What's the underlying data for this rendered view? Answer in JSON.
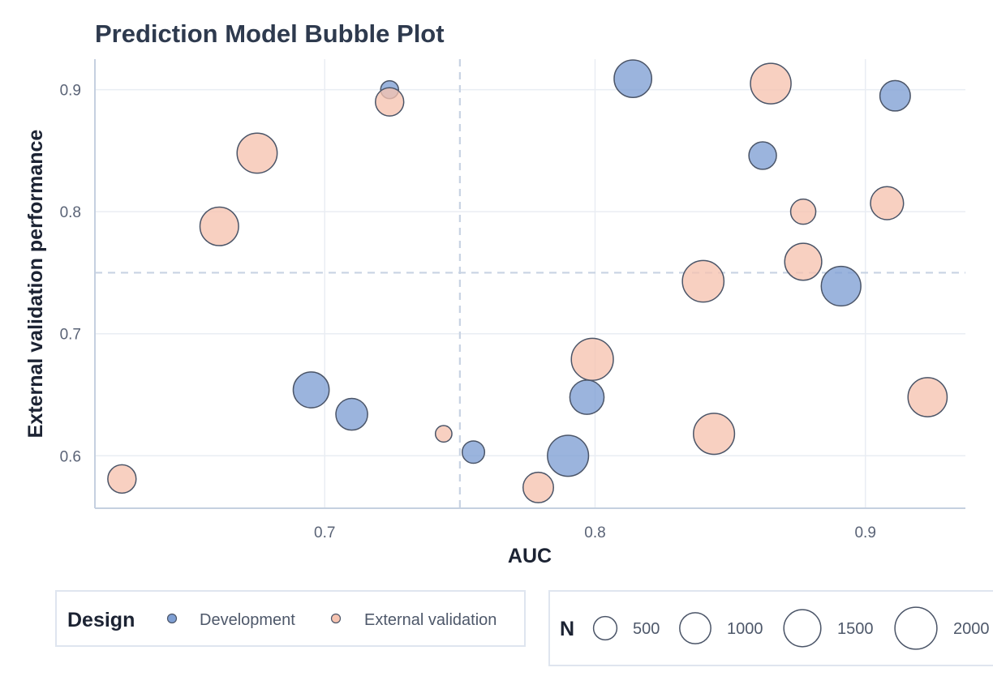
{
  "chart_data": {
    "type": "scatter",
    "title": "Prediction Model Bubble Plot",
    "xlabel": "AUC",
    "ylabel": "External validation performance",
    "xlim": [
      0.615,
      0.937
    ],
    "ylim": [
      0.557,
      0.925
    ],
    "x_ticks": [
      {
        "value": 0.7,
        "label": "0.7"
      },
      {
        "value": 0.8,
        "label": "0.8"
      },
      {
        "value": 0.9,
        "label": "0.9"
      }
    ],
    "y_ticks": [
      {
        "value": 0.6,
        "label": "0.6"
      },
      {
        "value": 0.7,
        "label": "0.7"
      },
      {
        "value": 0.8,
        "label": "0.8"
      },
      {
        "value": 0.9,
        "label": "0.9"
      }
    ],
    "grid": true,
    "reference_lines": {
      "x": 0.75,
      "y": 0.75
    },
    "size_variable": "N",
    "size_legend": [
      500,
      1000,
      1500,
      2000
    ],
    "color_variable": "Design",
    "series": [
      {
        "name": "Development",
        "color": "#7f9fd3",
        "points": [
          {
            "x": 0.724,
            "y": 0.9,
            "n": 250
          },
          {
            "x": 0.814,
            "y": 0.909,
            "n": 1550
          },
          {
            "x": 0.911,
            "y": 0.895,
            "n": 950
          },
          {
            "x": 0.862,
            "y": 0.846,
            "n": 750
          },
          {
            "x": 0.891,
            "y": 0.739,
            "n": 1750
          },
          {
            "x": 0.695,
            "y": 0.654,
            "n": 1400
          },
          {
            "x": 0.71,
            "y": 0.634,
            "n": 1050
          },
          {
            "x": 0.755,
            "y": 0.603,
            "n": 450
          },
          {
            "x": 0.79,
            "y": 0.6,
            "n": 1900
          },
          {
            "x": 0.797,
            "y": 0.648,
            "n": 1250
          }
        ]
      },
      {
        "name": "External validation",
        "color": "#f6c3b0",
        "points": [
          {
            "x": 0.724,
            "y": 0.89,
            "n": 800
          },
          {
            "x": 0.675,
            "y": 0.848,
            "n": 1800
          },
          {
            "x": 0.865,
            "y": 0.905,
            "n": 1850
          },
          {
            "x": 0.661,
            "y": 0.788,
            "n": 1650
          },
          {
            "x": 0.877,
            "y": 0.8,
            "n": 600
          },
          {
            "x": 0.908,
            "y": 0.807,
            "n": 1150
          },
          {
            "x": 0.877,
            "y": 0.759,
            "n": 1500
          },
          {
            "x": 0.84,
            "y": 0.743,
            "n": 1950
          },
          {
            "x": 0.799,
            "y": 0.679,
            "n": 2000
          },
          {
            "x": 0.844,
            "y": 0.618,
            "n": 1900
          },
          {
            "x": 0.923,
            "y": 0.648,
            "n": 1700
          },
          {
            "x": 0.744,
            "y": 0.618,
            "n": 200
          },
          {
            "x": 0.779,
            "y": 0.574,
            "n": 950
          },
          {
            "x": 0.625,
            "y": 0.581,
            "n": 800
          }
        ]
      }
    ]
  },
  "legend": {
    "design_title": "Design",
    "design_items": [
      {
        "label": "Development",
        "color": "#7f9fd3"
      },
      {
        "label": "External validation",
        "color": "#f6c3b0"
      }
    ],
    "size_title": "N",
    "size_items": [
      {
        "label": "500",
        "value": 500
      },
      {
        "label": "1000",
        "value": 1000
      },
      {
        "label": "1500",
        "value": 1500
      },
      {
        "label": "2000",
        "value": 2000
      }
    ]
  },
  "colors": {
    "grid": "#e9edf3",
    "axis": "#c5d0e0",
    "reference_line": "#c8d3e3",
    "marker_stroke": "#4b5568"
  }
}
